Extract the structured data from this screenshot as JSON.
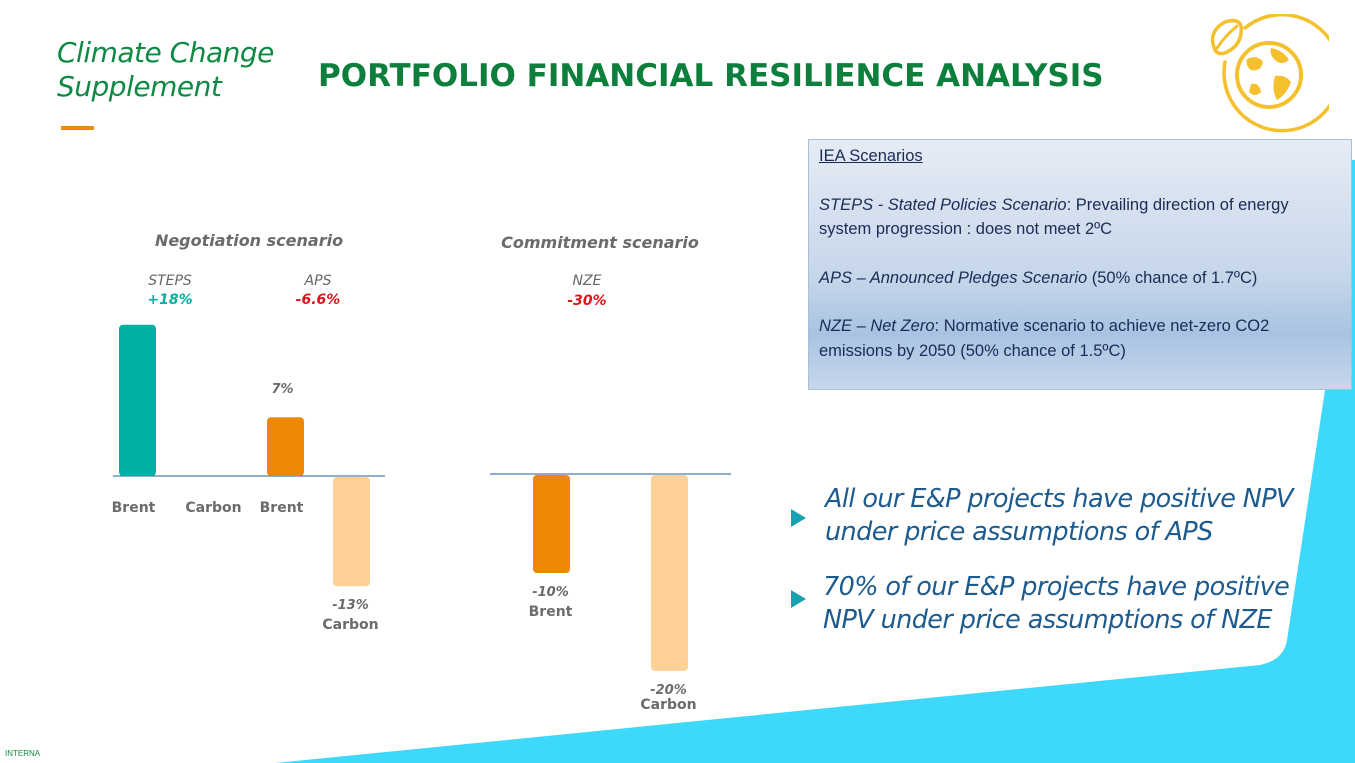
{
  "header": {
    "supplement_title_line1": "Climate Change",
    "supplement_title_line2": "Supplement",
    "main_title": "PORTFOLIO FINANCIAL RESILIENCE ANALYSIS"
  },
  "logo": {
    "icon": "globe-leaf-icon",
    "color": "#f5c02d"
  },
  "info_box": {
    "heading": "IEA Scenarios",
    "steps_italic": "STEPS - Stated Policies Scenario",
    "steps_text": ": Prevailing direction of energy system progression : does not meet 2ºC",
    "aps_italic": "APS – Announced Pledges Scenario",
    "aps_text": " (50% chance of 1.7ºC)",
    "nze_italic": "NZE – Net Zero",
    "nze_text": ": Normative scenario to achieve net-zero CO2 emissions by 2050 (50% chance of 1.5ºC)"
  },
  "bullets": [
    {
      "line1": "All our E&P projects have positive NPV",
      "line2": "under price assumptions of APS"
    },
    {
      "line1": "70% of our E&P projects have positive",
      "line2": "NPV under price assumptions of NZE"
    }
  ],
  "footer": {
    "label": "INTERNA"
  },
  "colors": {
    "green_title": "#0b7f3b",
    "teal": "#00b0a4",
    "orange": "#ec8806",
    "peach": "#fdd197",
    "red": "#e0121b",
    "cyan_bg": "#3ed8fb",
    "axis_line": "#1f5f96"
  },
  "chart_data": [
    {
      "type": "bar",
      "title": "Negotiation scenario",
      "groups": [
        {
          "name": "STEPS",
          "value_label": "+18%",
          "value_color": "#00b0a4"
        },
        {
          "name": "APS",
          "value_label": "-6.6%",
          "value_color": "#e0121b"
        }
      ],
      "bars": [
        {
          "group": "STEPS",
          "category": "Brent",
          "value": 18,
          "label": "",
          "color": "#00b0a4"
        },
        {
          "group": "STEPS",
          "category": "Carbon",
          "value": 0,
          "label": "",
          "color": "#00b0a4"
        },
        {
          "group": "APS",
          "category": "Brent",
          "value": 7,
          "label": "7%",
          "color": "#ec8806"
        },
        {
          "group": "APS",
          "category": "Carbon",
          "value": -13,
          "label": "-13%",
          "color": "#fdd197"
        }
      ]
    },
    {
      "type": "bar",
      "title": "Commitment scenario",
      "groups": [
        {
          "name": "NZE",
          "value_label": "-30%",
          "value_color": "#e0121b"
        }
      ],
      "bars": [
        {
          "group": "NZE",
          "category": "Brent",
          "value": -10,
          "label": "-10%",
          "color": "#ec8806"
        },
        {
          "group": "NZE",
          "category": "Carbon",
          "value": -20,
          "label": "-20%",
          "color": "#fdd197"
        }
      ]
    }
  ]
}
